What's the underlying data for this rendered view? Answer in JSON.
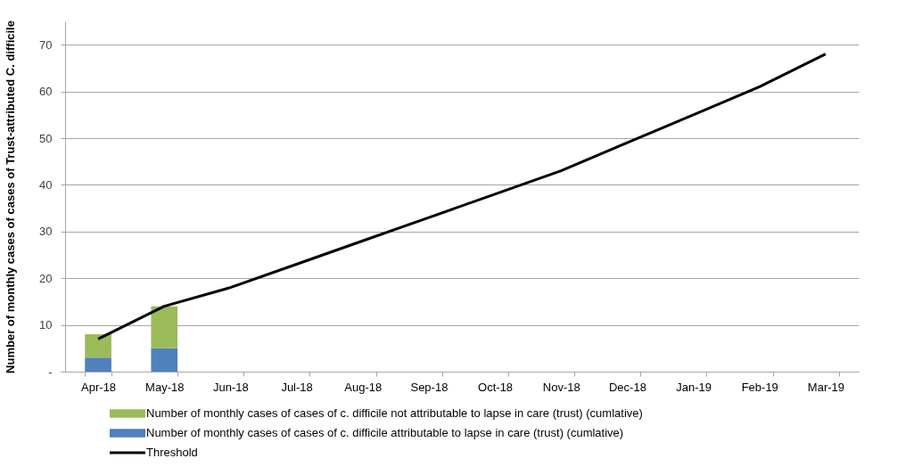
{
  "chart_data": {
    "type": "bar",
    "stacked": true,
    "ylabel": "Number of monthly cases of cases of Trust-attributed   C. difficile",
    "categories": [
      "Apr-18",
      "May-18",
      "Jun-18",
      "Jul-18",
      "Aug-18",
      "Sep-18",
      "Oct-18",
      "Nov-18",
      "Dec-18",
      "Jan-19",
      "Feb-19",
      "Mar-19"
    ],
    "series": [
      {
        "name": "Number of monthly cases of cases of c. difficile attributable to lapse in care (trust) (cumlative)",
        "color": "#4f81bd",
        "values": [
          3,
          5,
          null,
          null,
          null,
          null,
          null,
          null,
          null,
          null,
          null,
          null
        ]
      },
      {
        "name": "Number of monthly cases of cases of c. difficile not attributable to lapse in care (trust) (cumlative)",
        "color": "#9bbb59",
        "values": [
          5,
          9,
          null,
          null,
          null,
          null,
          null,
          null,
          null,
          null,
          null,
          null
        ]
      },
      {
        "name": "Threshold",
        "type": "line",
        "color": "#000000",
        "values": [
          7,
          14,
          18,
          23,
          28,
          33,
          38,
          43,
          49,
          55,
          61,
          68
        ]
      }
    ],
    "ylim": [
      0,
      75
    ],
    "yticks": [
      {
        "value": 0,
        "label": "-"
      },
      10,
      20,
      30,
      40,
      50,
      60,
      70
    ],
    "grid": "y",
    "legend": "bottom",
    "marker": "none",
    "line_style": "solid"
  }
}
